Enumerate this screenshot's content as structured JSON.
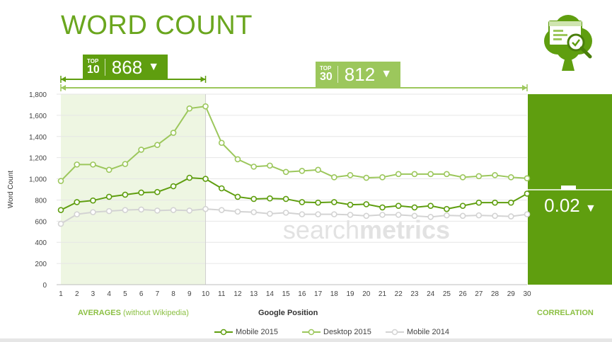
{
  "page": {
    "title": "WORD COUNT",
    "watermark_light": "search",
    "watermark_bold": "metrics"
  },
  "badges": {
    "top10": {
      "tag_small": "TOP",
      "tag_big": "10",
      "value": "868",
      "arrow": "▼"
    },
    "top30": {
      "tag_small": "TOP",
      "tag_big": "30",
      "value": "812",
      "arrow": "▼"
    }
  },
  "correlation": {
    "value": "0.02",
    "arrow": "▼",
    "label": "CORRELATION"
  },
  "averages": {
    "label_bold": "AVERAGES",
    "label_sub": "(without Wikipedia)"
  },
  "icon": {
    "name": "clover-document-magnifier-icon"
  },
  "colors": {
    "mobile2015": "#5f9e0f",
    "desktop2015": "#9cc75c",
    "mobile2014": "#d3d3d3",
    "title": "#6aa61e",
    "highlight": "#eef6e2",
    "correlation_panel": "#5f9e0f"
  },
  "chart_data": {
    "type": "line",
    "title": "WORD COUNT",
    "xlabel": "Google Position",
    "ylabel": "Word Count",
    "ylim": [
      0,
      1800
    ],
    "yticks": [
      0,
      200,
      400,
      600,
      800,
      1000,
      1200,
      1400,
      1600,
      1800
    ],
    "ytick_labels": [
      "0",
      "200",
      "400",
      "600",
      "800",
      "1,000",
      "1,200",
      "1,400",
      "1,600",
      "1,800"
    ],
    "x": [
      1,
      2,
      3,
      4,
      5,
      6,
      7,
      8,
      9,
      10,
      11,
      12,
      13,
      14,
      15,
      16,
      17,
      18,
      19,
      20,
      21,
      22,
      23,
      24,
      25,
      26,
      27,
      28,
      29,
      30
    ],
    "highlight_range": [
      1,
      10
    ],
    "grid": true,
    "legend_position": "bottom",
    "series": [
      {
        "name": "Mobile 2015",
        "values": [
          705,
          780,
          795,
          830,
          850,
          870,
          875,
          930,
          1010,
          1000,
          910,
          830,
          810,
          815,
          810,
          780,
          775,
          780,
          755,
          760,
          730,
          745,
          730,
          745,
          715,
          745,
          775,
          775,
          775,
          860
        ]
      },
      {
        "name": "Desktop 2015",
        "values": [
          980,
          1135,
          1135,
          1085,
          1140,
          1275,
          1320,
          1435,
          1665,
          1685,
          1340,
          1185,
          1115,
          1125,
          1065,
          1075,
          1085,
          1015,
          1035,
          1010,
          1015,
          1045,
          1045,
          1045,
          1045,
          1015,
          1025,
          1035,
          1015,
          1005
        ]
      },
      {
        "name": "Mobile 2014",
        "values": [
          575,
          665,
          685,
          695,
          705,
          710,
          700,
          705,
          700,
          715,
          705,
          690,
          685,
          670,
          680,
          665,
          665,
          665,
          660,
          650,
          660,
          660,
          650,
          640,
          655,
          650,
          655,
          650,
          645,
          665
        ]
      }
    ]
  }
}
